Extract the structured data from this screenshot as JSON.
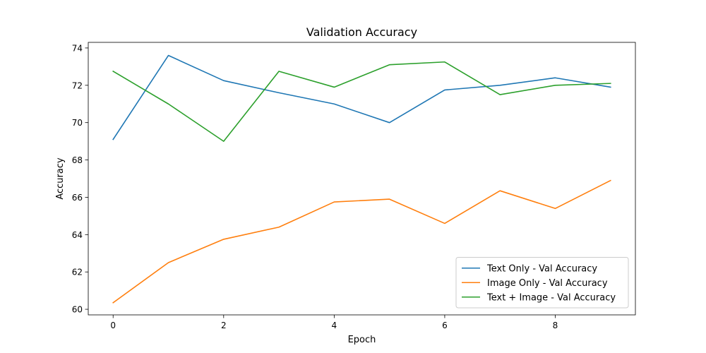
{
  "chart_data": {
    "type": "line",
    "title": "Validation Accuracy",
    "xlabel": "Epoch",
    "ylabel": "Accuracy",
    "x": [
      0,
      1,
      2,
      3,
      4,
      5,
      6,
      7,
      8,
      9
    ],
    "xlim": [
      -0.45,
      9.45
    ],
    "ylim": [
      59.7,
      74.3
    ],
    "xticks": [
      0,
      2,
      4,
      6,
      8
    ],
    "yticks": [
      60,
      62,
      64,
      66,
      68,
      70,
      72,
      74
    ],
    "grid": false,
    "legend_position": "bottom-right",
    "series": [
      {
        "name": "Text Only - Val Accuracy",
        "color": "#1f77b4",
        "values": [
          69.1,
          73.6,
          72.25,
          71.6,
          71.0,
          70.0,
          71.75,
          72.0,
          72.4,
          71.9
        ]
      },
      {
        "name": "Image Only - Val Accuracy",
        "color": "#ff7f0e",
        "values": [
          60.35,
          62.5,
          63.75,
          64.4,
          65.75,
          65.9,
          64.6,
          66.35,
          65.4,
          66.9
        ]
      },
      {
        "name": "Text + Image - Val Accuracy",
        "color": "#2ca02c",
        "values": [
          72.75,
          71.0,
          69.0,
          72.75,
          71.9,
          73.1,
          73.25,
          71.5,
          72.0,
          72.1
        ]
      }
    ]
  }
}
